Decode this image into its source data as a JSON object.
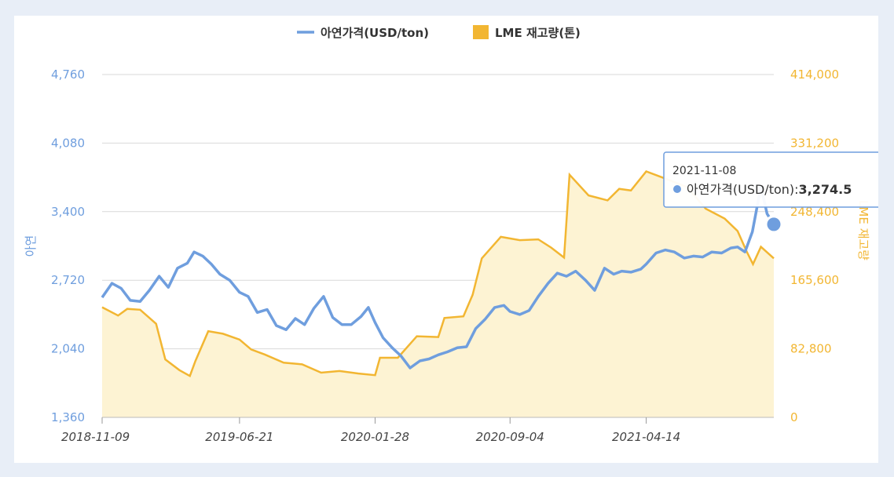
{
  "chart_data": {
    "type": "line",
    "legend_position": "top-center",
    "grid": true,
    "series": [
      {
        "name": "아연가격(USD/ton)",
        "kind": "line",
        "axis": "left",
        "color": "#6f9ede",
        "points": [
          [
            "2018-11-09",
            2550
          ],
          [
            "2018-11-25",
            2690
          ],
          [
            "2018-12-10",
            2640
          ],
          [
            "2018-12-25",
            2520
          ],
          [
            "2019-01-10",
            2510
          ],
          [
            "2019-01-25",
            2620
          ],
          [
            "2019-02-10",
            2760
          ],
          [
            "2019-02-25",
            2650
          ],
          [
            "2019-03-12",
            2840
          ],
          [
            "2019-03-28",
            2890
          ],
          [
            "2019-04-08",
            3000
          ],
          [
            "2019-04-22",
            2960
          ],
          [
            "2019-05-06",
            2880
          ],
          [
            "2019-05-20",
            2780
          ],
          [
            "2019-06-05",
            2720
          ],
          [
            "2019-06-21",
            2600
          ],
          [
            "2019-07-05",
            2560
          ],
          [
            "2019-07-20",
            2400
          ],
          [
            "2019-08-05",
            2430
          ],
          [
            "2019-08-20",
            2270
          ],
          [
            "2019-09-05",
            2230
          ],
          [
            "2019-09-20",
            2340
          ],
          [
            "2019-10-05",
            2280
          ],
          [
            "2019-10-20",
            2440
          ],
          [
            "2019-11-05",
            2560
          ],
          [
            "2019-11-20",
            2350
          ],
          [
            "2019-12-05",
            2280
          ],
          [
            "2019-12-20",
            2280
          ],
          [
            "2020-01-05",
            2360
          ],
          [
            "2020-01-17",
            2450
          ],
          [
            "2020-01-28",
            2300
          ],
          [
            "2020-02-10",
            2150
          ],
          [
            "2020-02-25",
            2050
          ],
          [
            "2020-03-10",
            1970
          ],
          [
            "2020-03-25",
            1850
          ],
          [
            "2020-04-10",
            1920
          ],
          [
            "2020-04-25",
            1940
          ],
          [
            "2020-05-10",
            1980
          ],
          [
            "2020-05-25",
            2010
          ],
          [
            "2020-06-10",
            2050
          ],
          [
            "2020-06-25",
            2060
          ],
          [
            "2020-07-10",
            2240
          ],
          [
            "2020-07-25",
            2330
          ],
          [
            "2020-08-10",
            2450
          ],
          [
            "2020-08-25",
            2470
          ],
          [
            "2020-09-04",
            2410
          ],
          [
            "2020-09-20",
            2380
          ],
          [
            "2020-10-05",
            2420
          ],
          [
            "2020-10-20",
            2560
          ],
          [
            "2020-11-05",
            2690
          ],
          [
            "2020-11-20",
            2790
          ],
          [
            "2020-12-05",
            2760
          ],
          [
            "2020-12-20",
            2810
          ],
          [
            "2021-01-05",
            2720
          ],
          [
            "2021-01-20",
            2620
          ],
          [
            "2021-02-05",
            2840
          ],
          [
            "2021-02-20",
            2780
          ],
          [
            "2021-03-05",
            2810
          ],
          [
            "2021-03-20",
            2800
          ],
          [
            "2021-04-05",
            2830
          ],
          [
            "2021-04-14",
            2880
          ],
          [
            "2021-04-30",
            2990
          ],
          [
            "2021-05-15",
            3020
          ],
          [
            "2021-05-30",
            3000
          ],
          [
            "2021-06-15",
            2940
          ],
          [
            "2021-06-30",
            2960
          ],
          [
            "2021-07-15",
            2950
          ],
          [
            "2021-07-30",
            3000
          ],
          [
            "2021-08-15",
            2990
          ],
          [
            "2021-08-30",
            3040
          ],
          [
            "2021-09-10",
            3050
          ],
          [
            "2021-09-22",
            3000
          ],
          [
            "2021-10-04",
            3200
          ],
          [
            "2021-10-18",
            3650
          ],
          [
            "2021-10-28",
            3380
          ],
          [
            "2021-11-08",
            3274.5
          ]
        ]
      },
      {
        "name": "LME 재고량(톤)",
        "kind": "area",
        "axis": "right",
        "color": "#f2b632",
        "fill": "#fdf3d3",
        "points": [
          [
            "2018-11-09",
            133000
          ],
          [
            "2018-12-05",
            123000
          ],
          [
            "2018-12-20",
            131000
          ],
          [
            "2019-01-10",
            130000
          ],
          [
            "2019-02-05",
            113000
          ],
          [
            "2019-02-20",
            70000
          ],
          [
            "2019-03-15",
            57000
          ],
          [
            "2019-04-01",
            50000
          ],
          [
            "2019-04-10",
            68000
          ],
          [
            "2019-05-01",
            104000
          ],
          [
            "2019-05-25",
            101000
          ],
          [
            "2019-06-21",
            94000
          ],
          [
            "2019-07-10",
            82000
          ],
          [
            "2019-08-01",
            76000
          ],
          [
            "2019-09-01",
            66000
          ],
          [
            "2019-10-01",
            64000
          ],
          [
            "2019-11-01",
            54000
          ],
          [
            "2019-12-01",
            56000
          ],
          [
            "2020-01-01",
            53000
          ],
          [
            "2020-01-28",
            51000
          ],
          [
            "2020-02-05",
            72000
          ],
          [
            "2020-03-05",
            72000
          ],
          [
            "2020-04-05",
            98000
          ],
          [
            "2020-05-10",
            97000
          ],
          [
            "2020-05-20",
            120000
          ],
          [
            "2020-06-20",
            122000
          ],
          [
            "2020-07-05",
            148000
          ],
          [
            "2020-07-20",
            192000
          ],
          [
            "2020-08-20",
            218000
          ],
          [
            "2020-09-20",
            214000
          ],
          [
            "2020-10-20",
            215000
          ],
          [
            "2020-11-10",
            205000
          ],
          [
            "2020-12-01",
            193000
          ],
          [
            "2020-12-10",
            293000
          ],
          [
            "2021-01-10",
            268000
          ],
          [
            "2021-02-10",
            262000
          ],
          [
            "2021-03-01",
            276000
          ],
          [
            "2021-03-20",
            274000
          ],
          [
            "2021-04-14",
            297000
          ],
          [
            "2021-05-20",
            287000
          ],
          [
            "2021-06-20",
            278000
          ],
          [
            "2021-07-20",
            252000
          ],
          [
            "2021-08-20",
            240000
          ],
          [
            "2021-09-10",
            225000
          ],
          [
            "2021-09-25",
            200000
          ],
          [
            "2021-10-05",
            185000
          ],
          [
            "2021-10-18",
            206000
          ],
          [
            "2021-11-08",
            192000
          ]
        ]
      }
    ],
    "x_ticks": [
      "2018-11-09",
      "2019-06-21",
      "2020-01-28",
      "2020-09-04",
      "2021-04-14"
    ],
    "xlim": [
      "2018-11-09",
      "2021-11-08"
    ],
    "y_left": {
      "label": "아연",
      "ylim": [
        1360,
        4760
      ],
      "ticks": [
        "1,360",
        "2,040",
        "2,720",
        "3,400",
        "4,080",
        "4,760"
      ]
    },
    "y_right": {
      "label": "LME 재고량",
      "ylim": [
        0,
        414000
      ],
      "ticks": [
        "0",
        "82,800",
        "165,600",
        "248,400",
        "331,200",
        "414,000"
      ]
    },
    "tooltip": {
      "date": "2021-11-08",
      "label": "아연가격(USD/ton): ",
      "value": "3,274.5",
      "value_num": 3274.5
    }
  }
}
